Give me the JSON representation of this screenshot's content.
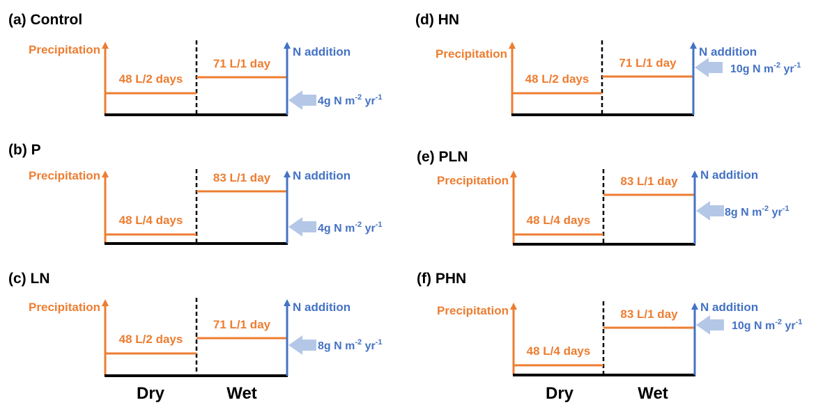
{
  "colors": {
    "precipitation": "#ED7D31",
    "n_addition": "#4472C4",
    "n_arrow": "#B4C7E7",
    "axis": "#000000"
  },
  "axis_labels": {
    "precipitation": "Precipitation",
    "n_addition": "N addition"
  },
  "phases": {
    "dry": "Dry",
    "wet": "Wet"
  },
  "panels": [
    {
      "title": "(a) Control",
      "dry": "48 L/2 days",
      "wet": "71 L/1 day",
      "n_rate": "4g N m-2 yr-1"
    },
    {
      "title": "(b) P",
      "dry": "48 L/4 days",
      "wet": "83 L/1 day",
      "n_rate": "4g N m-2 yr-1"
    },
    {
      "title": "(c) LN",
      "dry": "48 L/2 days",
      "wet": "71 L/1 day",
      "n_rate": "8g N m-2 yr-1"
    },
    {
      "title": "(d) HN",
      "dry": "48 L/2 days",
      "wet": "71 L/1 day",
      "n_rate": "10g N m-2 yr-1"
    },
    {
      "title": "(e) PLN",
      "dry": "48 L/4 days",
      "wet": "83 L/1 day",
      "n_rate": "8g N m-2 yr-1"
    },
    {
      "title": "(f) PHN",
      "dry": "48 L/4 days",
      "wet": "83 L/1 day",
      "n_rate": "10g N m-2 yr-1"
    }
  ]
}
